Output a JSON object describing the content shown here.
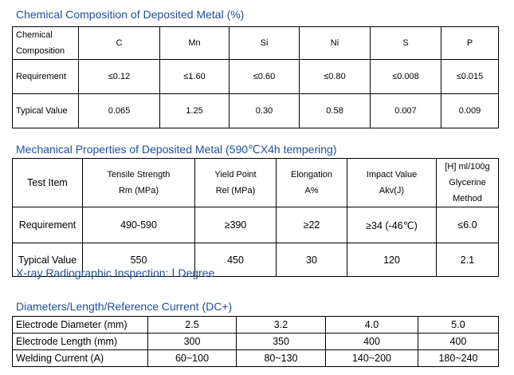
{
  "chemical": {
    "title": "Chemical Composition of Deposited Metal (%)",
    "header_line1": "Chemical",
    "header_line2": "Composition",
    "elements": [
      "C",
      "Mn",
      "Si",
      "Ni",
      "S",
      "P"
    ],
    "requirement_label": "Requirement",
    "requirement": [
      "≤0.12",
      "≤1.60",
      "≤0.60",
      "≤0.80",
      "≤0.008",
      "≤0.015"
    ],
    "typical_label": "Typical Value",
    "typical": [
      "0.065",
      "1.25",
      "0.30",
      "0.58",
      "0.007",
      "0.009"
    ]
  },
  "mechanical": {
    "title": "Mechanical Properties of Deposited Metal (590℃X4h tempering)",
    "test_item": "Test Item",
    "columns": [
      {
        "line1": "Tensile Strength",
        "line2": "Rm (MPa)"
      },
      {
        "line1": "Yield Point",
        "line2": "Rel (MPa)"
      },
      {
        "line1": "Elongation",
        "line2": "A%"
      },
      {
        "line1": "Impact Value",
        "line2": "Akv(J)"
      },
      {
        "line1": "[H] ml/100g",
        "line2": "Glycerine Method"
      }
    ],
    "requirement_label": "Requirement",
    "requirement": [
      "490-590",
      "≥390",
      "≥22",
      "≥34 (-46℃)",
      "≤6.0"
    ],
    "typical_label": "Typical Value",
    "typical": [
      "550",
      "450",
      "30",
      "120",
      "2.1"
    ]
  },
  "xray": {
    "text": "X-ray Radiographic Inspection: Ⅰ Degree"
  },
  "diameters": {
    "title": "Diameters/Length/Reference Current (DC+)",
    "rows": [
      {
        "label": "Electrode Diameter (mm)",
        "values": [
          "2.5",
          "3.2",
          "4.0",
          "5.0"
        ]
      },
      {
        "label": "Electrode Length (mm)",
        "values": [
          "300",
          "350",
          "400",
          "400"
        ]
      },
      {
        "label": "Welding Current (A)",
        "values": [
          "60~100",
          "80~130",
          "140~200",
          "180~240"
        ]
      }
    ]
  }
}
